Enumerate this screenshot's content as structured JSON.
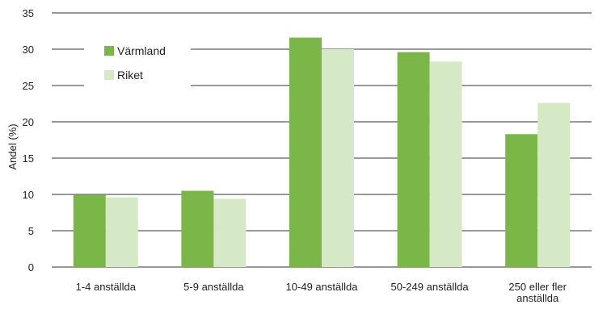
{
  "chart_data": {
    "type": "bar",
    "title": "",
    "xlabel": "",
    "ylabel": "Andel (%)",
    "ylim": [
      0,
      35
    ],
    "y_ticks": [
      0,
      5,
      10,
      15,
      20,
      25,
      30,
      35
    ],
    "grid": true,
    "legend_position": "top-left",
    "categories": [
      [
        "1-4 anställda"
      ],
      [
        "5-9 anställda"
      ],
      [
        "10-49 anställda"
      ],
      [
        "50-249 anställda"
      ],
      [
        "250 eller fler",
        "anställda"
      ]
    ],
    "series": [
      {
        "name": "Värmland",
        "color": "#7ab648",
        "values": [
          9.9,
          10.5,
          31.6,
          29.6,
          18.3
        ]
      },
      {
        "name": "Riket",
        "color": "#d6e9c6",
        "values": [
          9.6,
          9.4,
          30.0,
          28.3,
          22.6
        ]
      }
    ]
  }
}
